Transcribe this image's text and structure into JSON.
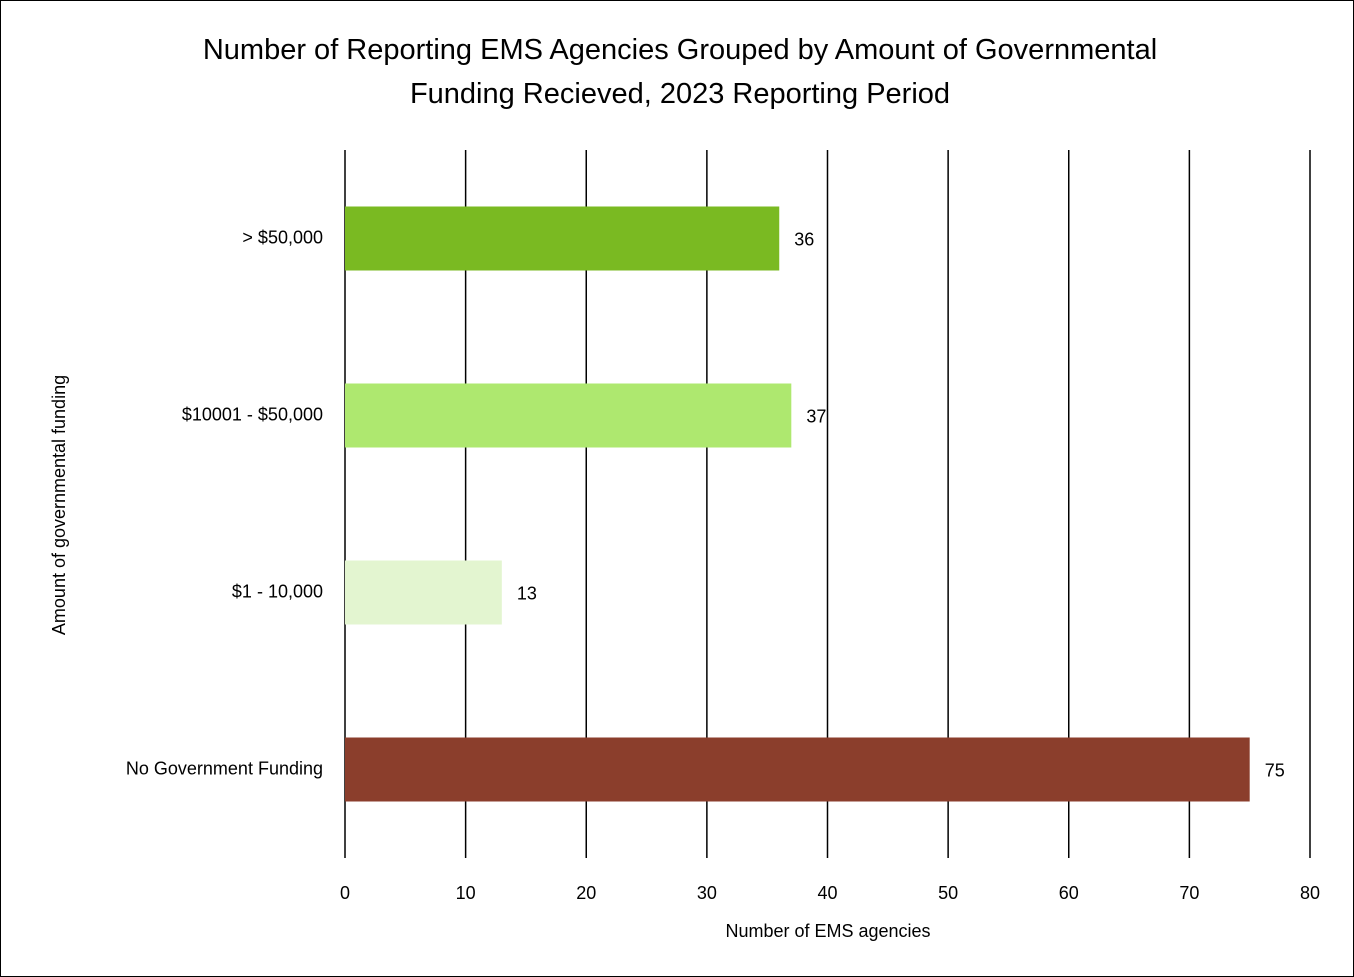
{
  "chart_data": {
    "type": "hbar",
    "title": "Number of Reporting EMS Agencies Grouped by Amount of Governmental Funding Recieved, 2023 Reporting Period",
    "categories": [
      "> $50,000",
      "$10001 - $50,000",
      "$1 - 10,000",
      "No Government Funding"
    ],
    "values": [
      36,
      37,
      13,
      75
    ],
    "colors": [
      "#7aba22",
      "#aee86f",
      "#e3f5d0",
      "#8b3e2c"
    ],
    "xlabel": "Number of EMS agencies",
    "ylabel": "Amount of governmental funding",
    "xlim": [
      0,
      80
    ],
    "xticks": [
      0,
      10,
      20,
      30,
      40,
      50,
      60,
      70,
      80
    ],
    "grid": true
  }
}
